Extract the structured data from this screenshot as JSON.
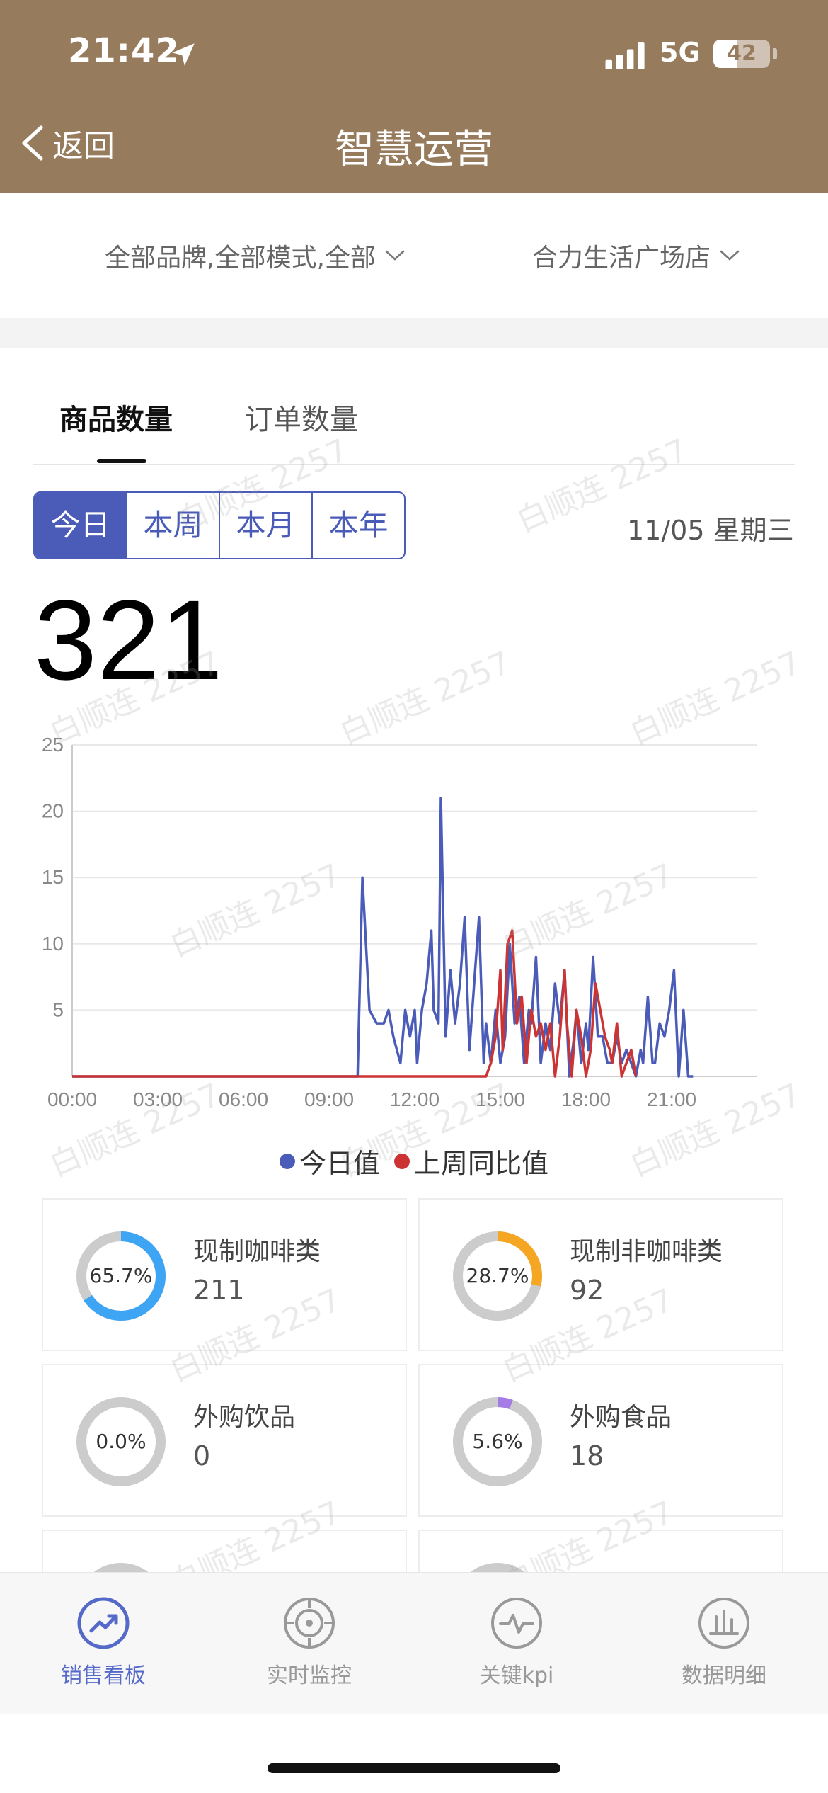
{
  "status_bar": {
    "time": "21:42",
    "network": "5G",
    "battery": "42",
    "battery_level": 0.42
  },
  "nav": {
    "back_label": "返回",
    "title": "智慧运营"
  },
  "filters": {
    "brand_filter": "全部品牌,全部模式,全部",
    "store_filter": "合力生活广场店"
  },
  "tabs": [
    {
      "label": "商品数量",
      "active": true
    },
    {
      "label": "订单数量",
      "active": false
    }
  ],
  "period": {
    "options": [
      "今日",
      "本周",
      "本月",
      "本年"
    ],
    "active_index": 0,
    "date_label": "11/05 星期三"
  },
  "total": "321",
  "chart_data": {
    "type": "line",
    "title": "",
    "xlabel": "",
    "ylabel": "",
    "x_ticks": [
      "00:00",
      "03:00",
      "06:00",
      "09:00",
      "12:00",
      "15:00",
      "18:00",
      "21:00"
    ],
    "x_range": [
      "00:00",
      "24:00"
    ],
    "ylim": [
      0,
      25
    ],
    "y_ticks": [
      5,
      10,
      15,
      20,
      25
    ],
    "y_tick_labels": [
      "5",
      "10",
      "15",
      "20",
      "25"
    ],
    "grid": true,
    "legend_position": "bottom",
    "series": [
      {
        "name": "今日值",
        "color": "#4a5bb8",
        "points": [
          [
            "00:00",
            0
          ],
          [
            "10:00",
            0
          ],
          [
            "10:10",
            15
          ],
          [
            "10:25",
            5
          ],
          [
            "10:40",
            4
          ],
          [
            "10:55",
            4
          ],
          [
            "11:05",
            5
          ],
          [
            "11:15",
            3
          ],
          [
            "11:30",
            1
          ],
          [
            "11:40",
            5
          ],
          [
            "11:50",
            3
          ],
          [
            "12:00",
            5
          ],
          [
            "12:05",
            1
          ],
          [
            "12:15",
            5
          ],
          [
            "12:25",
            7
          ],
          [
            "12:35",
            11
          ],
          [
            "12:40",
            5
          ],
          [
            "12:50",
            4
          ],
          [
            "12:55",
            21
          ],
          [
            "13:05",
            3
          ],
          [
            "13:15",
            8
          ],
          [
            "13:25",
            4
          ],
          [
            "13:35",
            7
          ],
          [
            "13:45",
            12
          ],
          [
            "13:55",
            2
          ],
          [
            "14:05",
            7
          ],
          [
            "14:15",
            12
          ],
          [
            "14:25",
            1
          ],
          [
            "14:30",
            4
          ],
          [
            "14:40",
            1
          ],
          [
            "14:50",
            5
          ],
          [
            "15:00",
            1
          ],
          [
            "15:10",
            3
          ],
          [
            "15:20",
            10
          ],
          [
            "15:30",
            4
          ],
          [
            "15:40",
            6
          ],
          [
            "15:50",
            1
          ],
          [
            "16:00",
            5
          ],
          [
            "16:05",
            4
          ],
          [
            "16:15",
            9
          ],
          [
            "16:25",
            1
          ],
          [
            "16:35",
            4
          ],
          [
            "16:45",
            2
          ],
          [
            "16:55",
            7
          ],
          [
            "17:05",
            4
          ],
          [
            "17:15",
            8
          ],
          [
            "17:25",
            0
          ],
          [
            "17:35",
            3
          ],
          [
            "17:40",
            5
          ],
          [
            "17:50",
            1
          ],
          [
            "18:00",
            4
          ],
          [
            "18:05",
            2
          ],
          [
            "18:15",
            9
          ],
          [
            "18:25",
            3
          ],
          [
            "18:35",
            3
          ],
          [
            "18:45",
            1
          ],
          [
            "18:55",
            1
          ],
          [
            "19:05",
            3
          ],
          [
            "19:15",
            1
          ],
          [
            "19:25",
            2
          ],
          [
            "19:35",
            1
          ],
          [
            "19:45",
            0
          ],
          [
            "19:55",
            2
          ],
          [
            "20:00",
            1
          ],
          [
            "20:10",
            6
          ],
          [
            "20:20",
            1
          ],
          [
            "20:25",
            1
          ],
          [
            "20:35",
            4
          ],
          [
            "20:45",
            3
          ],
          [
            "20:55",
            5
          ],
          [
            "21:05",
            8
          ],
          [
            "21:15",
            0
          ],
          [
            "21:25",
            5
          ],
          [
            "21:35",
            0
          ],
          [
            "21:45",
            0
          ]
        ]
      },
      {
        "name": "上周同比值",
        "color": "#cc3333",
        "points": [
          [
            "00:00",
            0
          ],
          [
            "14:30",
            0
          ],
          [
            "14:40",
            1
          ],
          [
            "14:50",
            3
          ],
          [
            "15:00",
            8
          ],
          [
            "15:05",
            2
          ],
          [
            "15:15",
            10
          ],
          [
            "15:25",
            11
          ],
          [
            "15:35",
            4
          ],
          [
            "15:45",
            6
          ],
          [
            "15:55",
            1
          ],
          [
            "16:05",
            5
          ],
          [
            "16:15",
            3
          ],
          [
            "16:25",
            4
          ],
          [
            "16:35",
            2
          ],
          [
            "16:45",
            4
          ],
          [
            "16:55",
            0
          ],
          [
            "17:05",
            3
          ],
          [
            "17:15",
            8
          ],
          [
            "17:20",
            4
          ],
          [
            "17:30",
            0
          ],
          [
            "17:40",
            5
          ],
          [
            "17:50",
            3
          ],
          [
            "18:00",
            0
          ],
          [
            "18:10",
            2
          ],
          [
            "18:20",
            7
          ],
          [
            "18:30",
            5
          ],
          [
            "18:40",
            3
          ],
          [
            "18:50",
            2
          ],
          [
            "18:55",
            1
          ],
          [
            "19:05",
            4
          ],
          [
            "19:15",
            0
          ],
          [
            "19:25",
            1
          ],
          [
            "19:35",
            2
          ],
          [
            "19:45",
            0
          ]
        ]
      }
    ]
  },
  "categories": [
    {
      "name": "现制咖啡类",
      "value": "211",
      "percent_label": "65.7%",
      "ratio": 0.657,
      "color": "#3da5f4"
    },
    {
      "name": "现制非咖啡类",
      "value": "92",
      "percent_label": "28.7%",
      "ratio": 0.287,
      "color": "#f5a623"
    },
    {
      "name": "外购饮品",
      "value": "0",
      "percent_label": "0.0%",
      "ratio": 0.0,
      "color": "#4a5bb8"
    },
    {
      "name": "外购食品",
      "value": "18",
      "percent_label": "5.6%",
      "ratio": 0.056,
      "color": "#a57ce6"
    }
  ],
  "bottom_tabs": [
    {
      "label": "销售看板",
      "icon": "trend-up-icon",
      "active": true
    },
    {
      "label": "实时监控",
      "icon": "target-icon",
      "active": false
    },
    {
      "label": "关键kpi",
      "icon": "pulse-icon",
      "active": false
    },
    {
      "label": "数据明细",
      "icon": "bar-chart-icon",
      "active": false
    }
  ],
  "watermark": "白顺连 2257",
  "colors": {
    "header": "#977b5d",
    "accent": "#4a5bb8",
    "inactive": "#999999"
  }
}
